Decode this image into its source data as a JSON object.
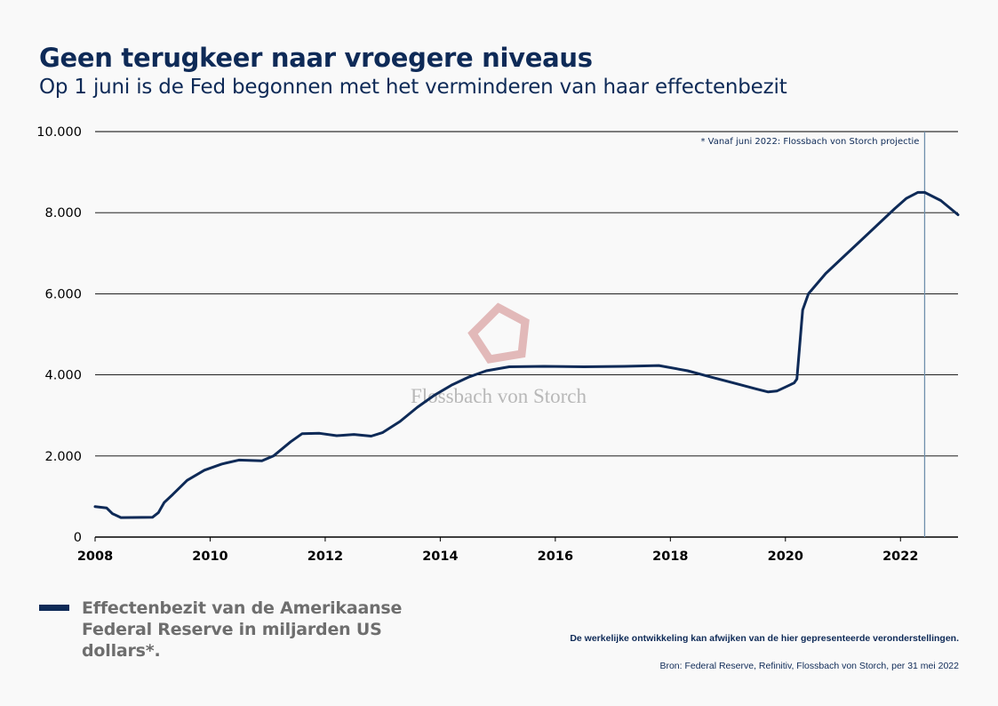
{
  "header": {
    "title": "Geen terugkeer naar vroegere niveaus",
    "subtitle": "Op 1 juni is de Fed begonnen met het verminderen van haar effectenbezit"
  },
  "watermark": {
    "text": "Flossbach von Storch",
    "logo_icon": "pentagon-logo-icon"
  },
  "colors": {
    "series": "#0e2a57",
    "grid": "#000000",
    "projection_line": "#6f8fab",
    "watermark": "#d9a3a3"
  },
  "legend": {
    "label": "Effectenbezit van de Amerikaanse Federal Reserve in miljarden US dollars*."
  },
  "footer": {
    "disclaimer": "De werkelijke ontwikkeling kan afwijken van de hier gepresenteerde veronderstellingen.",
    "source": "Bron: Federal Reserve, Refinitiv, Flossbach von Storch, per 31 mei 2022"
  },
  "chart_data": {
    "type": "line",
    "title": "",
    "xlabel": "",
    "ylabel": "",
    "xlim": [
      2008,
      2023
    ],
    "ylim": [
      0,
      10000
    ],
    "xticks": [
      2008,
      2010,
      2012,
      2014,
      2016,
      2018,
      2020,
      2022
    ],
    "yticks": [
      0,
      2000,
      4000,
      6000,
      8000,
      10000
    ],
    "ytick_labels": [
      "0",
      "2.000",
      "4.000",
      "6.000",
      "8.000",
      "10.000"
    ],
    "grid": "horizontal",
    "annotation": {
      "x": 2022.42,
      "text": "* Vanaf juni 2022: Flossbach von Storch projectie"
    },
    "series": [
      {
        "name": "Effectenbezit van de Amerikaanse Federal Reserve in miljarden US dollars*.",
        "x": [
          2008.0,
          2008.2,
          2008.3,
          2008.45,
          2009.0,
          2009.1,
          2009.2,
          2009.35,
          2009.6,
          2009.9,
          2010.2,
          2010.5,
          2010.9,
          2011.1,
          2011.4,
          2011.6,
          2011.9,
          2012.2,
          2012.5,
          2012.8,
          2013.0,
          2013.3,
          2013.6,
          2013.9,
          2014.2,
          2014.5,
          2014.8,
          2015.2,
          2015.8,
          2016.5,
          2017.2,
          2017.8,
          2018.3,
          2018.7,
          2019.1,
          2019.5,
          2019.7,
          2019.85,
          2020.0,
          2020.15,
          2020.2,
          2020.3,
          2020.4,
          2020.7,
          2021.0,
          2021.3,
          2021.6,
          2021.9,
          2022.1,
          2022.3,
          2022.42,
          2022.7,
          2023.0
        ],
        "y": [
          750,
          720,
          580,
          480,
          490,
          600,
          850,
          1050,
          1400,
          1650,
          1800,
          1900,
          1880,
          2000,
          2350,
          2550,
          2560,
          2500,
          2530,
          2490,
          2580,
          2850,
          3200,
          3500,
          3750,
          3950,
          4100,
          4200,
          4210,
          4200,
          4210,
          4230,
          4100,
          3950,
          3800,
          3650,
          3580,
          3600,
          3700,
          3800,
          3900,
          5600,
          6000,
          6500,
          6900,
          7300,
          7700,
          8100,
          8350,
          8500,
          8500,
          8300,
          7950
        ]
      }
    ]
  }
}
